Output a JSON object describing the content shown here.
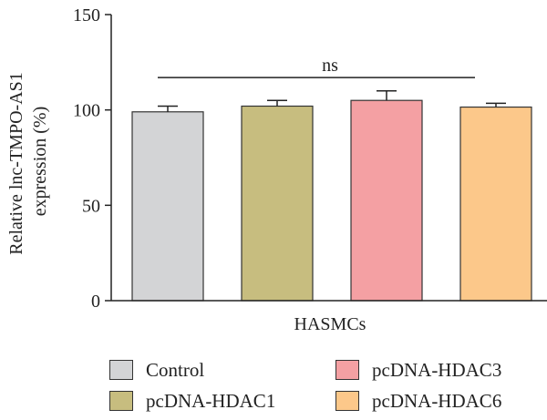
{
  "chart_data": {
    "type": "bar",
    "ylabel_line1": "Relative lnc-TMPO-AS1",
    "ylabel_line2": "expression (%)",
    "xlabel": "HASMCs",
    "ylim": [
      0,
      150
    ],
    "yticks": [
      0,
      50,
      100,
      150
    ],
    "annotation": "ns",
    "series": [
      {
        "name": "Control",
        "value": 99,
        "error": 3,
        "color": "#d3d4d6"
      },
      {
        "name": "pcDNA-HDAC1",
        "value": 102,
        "error": 3,
        "color": "#c7bd7f"
      },
      {
        "name": "pcDNA-HDAC3",
        "value": 105,
        "error": 5,
        "color": "#f4a0a3"
      },
      {
        "name": "pcDNA-HDAC6",
        "value": 101.5,
        "error": 2,
        "color": "#fcc88a"
      }
    ],
    "legend_placement": "bottom"
  }
}
